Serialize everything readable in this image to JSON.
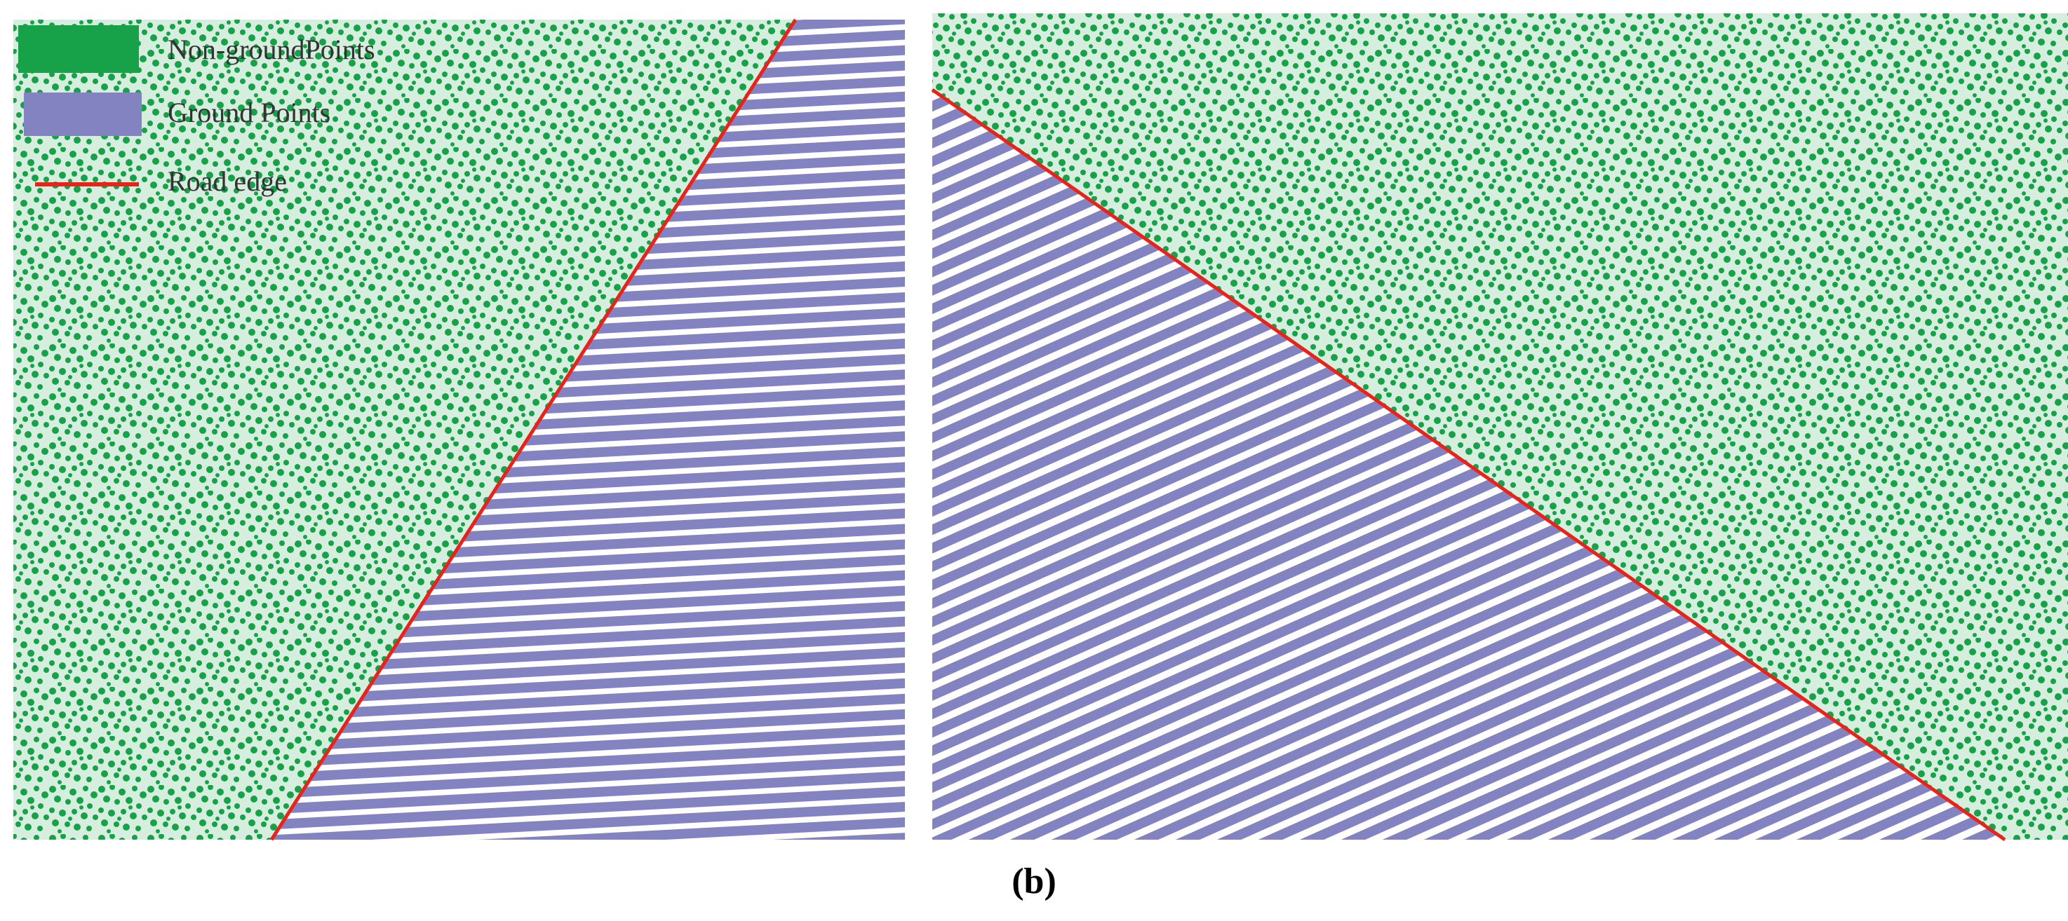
{
  "legend": {
    "items": [
      {
        "label": "Non-groundPoints"
      },
      {
        "label": "Ground Points"
      },
      {
        "label": "Road edge"
      }
    ]
  },
  "caption": "(b)"
}
